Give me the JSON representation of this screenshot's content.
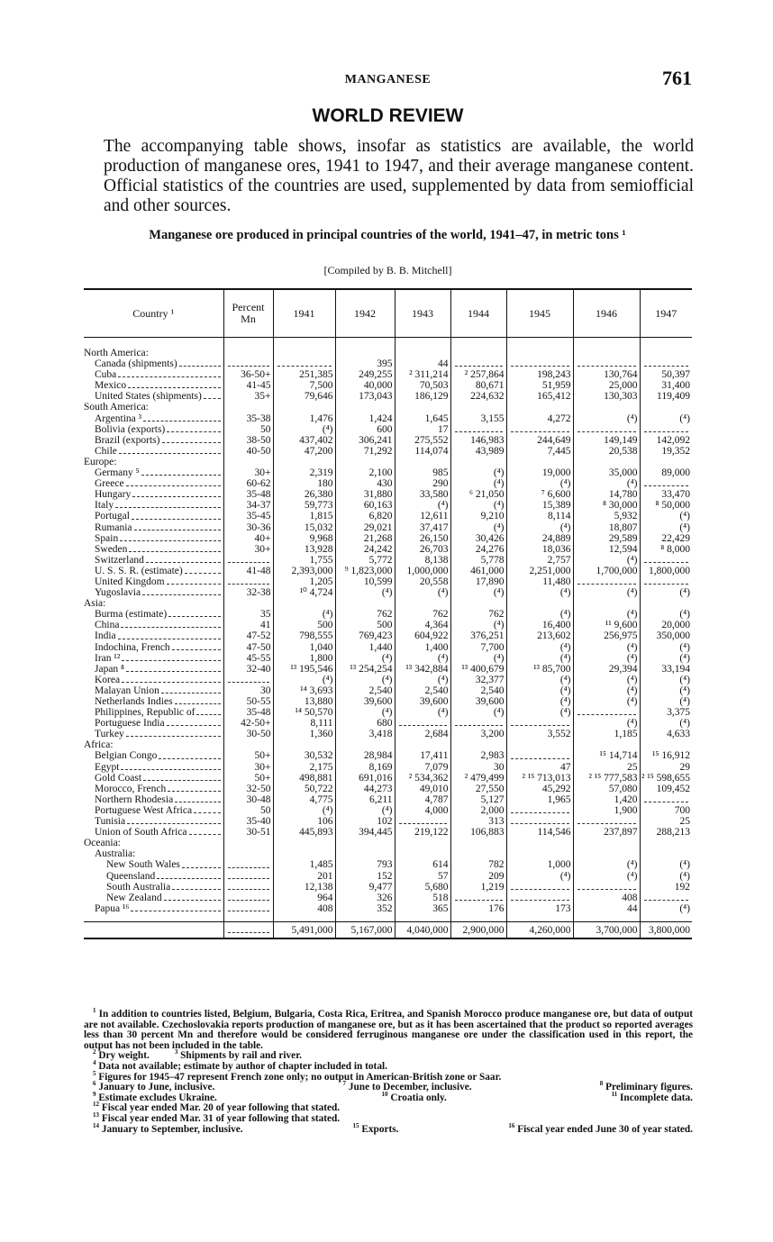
{
  "header": {
    "title": "MANGANESE",
    "page": "761"
  },
  "section_title": "WORLD REVIEW",
  "intro": "The accompanying table shows, insofar as statistics are available, the world production of manganese ores, 1941 to 1947, and their average manganese content. Official statistics of the countries are used, supplemented by data from semiofficial and other sources.",
  "table": {
    "caption": "Manganese ore produced in principal countries of the world, 1941–47, in metric tons ¹",
    "compiled": "[Compiled by B. B. Mitchell]",
    "columns": [
      "Country ¹",
      "Percent Mn",
      "1941",
      "1942",
      "1943",
      "1944",
      "1945",
      "1946",
      "1947"
    ],
    "groups": [
      {
        "name": "North America:",
        "rows": [
          [
            "Canada (shipments)",
            null,
            null,
            "395",
            "44",
            null,
            null,
            null,
            null
          ],
          [
            "Cuba",
            "36-50+",
            "251,385",
            "249,255",
            "² 311,214",
            "² 257,864",
            "198,243",
            "130,764",
            "50,397"
          ],
          [
            "Mexico",
            "41-45",
            "7,500",
            "40,000",
            "70,503",
            "80,671",
            "51,959",
            "25,000",
            "31,400"
          ],
          [
            "United States (shipments)",
            "35+",
            "79,646",
            "173,043",
            "186,129",
            "224,632",
            "165,412",
            "130,303",
            "119,409"
          ]
        ]
      },
      {
        "name": "South America:",
        "rows": [
          [
            "Argentina ³",
            "35-38",
            "1,476",
            "1,424",
            "1,645",
            "3,155",
            "4,272",
            "(⁴)",
            "(⁴)"
          ],
          [
            "Bolivia (exports)",
            "50",
            "(⁴)",
            "600",
            "17",
            null,
            null,
            null,
            null
          ],
          [
            "Brazil (exports)",
            "38-50",
            "437,402",
            "306,241",
            "275,552",
            "146,983",
            "244,649",
            "149,149",
            "142,092"
          ],
          [
            "Chile",
            "40-50",
            "47,200",
            "71,292",
            "114,074",
            "43,989",
            "7,445",
            "20,538",
            "19,352"
          ]
        ]
      },
      {
        "name": "Europe:",
        "rows": [
          [
            "Germany ⁵",
            "30+",
            "2,319",
            "2,100",
            "985",
            "(⁴)",
            "19,000",
            "35,000",
            "89,000"
          ],
          [
            "Greece",
            "60-62",
            "180",
            "430",
            "290",
            "(⁴)",
            "(⁴)",
            "(⁴)",
            null
          ],
          [
            "Hungary",
            "35-48",
            "26,380",
            "31,880",
            "33,580",
            "⁶ 21,050",
            "⁷ 6,600",
            "14,780",
            "33,470"
          ],
          [
            "Italy",
            "34-37",
            "59,773",
            "60,163",
            "(⁴)",
            "(⁴)",
            "15,389",
            "⁸ 30,000",
            "⁸ 50,000"
          ],
          [
            "Portugal",
            "35-45",
            "1,815",
            "6,820",
            "12,611",
            "9,210",
            "8,114",
            "5,932",
            "(⁴)"
          ],
          [
            "Rumania",
            "30-36",
            "15,032",
            "29,021",
            "37,417",
            "(⁴)",
            "(⁴)",
            "18,807",
            "(⁴)"
          ],
          [
            "Spain",
            "40+",
            "9,968",
            "21,268",
            "26,150",
            "30,426",
            "24,889",
            "29,589",
            "22,429"
          ],
          [
            "Sweden",
            "30+",
            "13,928",
            "24,242",
            "26,703",
            "24,276",
            "18,036",
            "12,594",
            "⁸ 8,000"
          ],
          [
            "Switzerland",
            null,
            "1,755",
            "5,772",
            "8,138",
            "5,778",
            "2,757",
            "(⁴)",
            null
          ],
          [
            "U. S. S. R. (estimate)",
            "41-48",
            "2,393,000",
            "⁹ 1,823,000",
            "1,000,000",
            "461,000",
            "2,251,000",
            "1,700,000",
            "1,800,000"
          ],
          [
            "United Kingdom",
            null,
            "1,205",
            "10,599",
            "20,558",
            "17,890",
            "11,480",
            null,
            null
          ],
          [
            "Yugoslavia",
            "32-38",
            "¹⁰ 4,724",
            "(⁴)",
            "(⁴)",
            "(⁴)",
            "(⁴)",
            "(⁴)",
            "(⁴)"
          ]
        ]
      },
      {
        "name": "Asia:",
        "rows": [
          [
            "Burma (estimate)",
            "35",
            "(⁴)",
            "762",
            "762",
            "762",
            "(⁴)",
            "(⁴)",
            "(⁴)"
          ],
          [
            "China",
            "41",
            "500",
            "500",
            "4,364",
            "(⁴)",
            "16,400",
            "¹¹ 9,600",
            "20,000"
          ],
          [
            "India",
            "47-52",
            "798,555",
            "769,423",
            "604,922",
            "376,251",
            "213,602",
            "256,975",
            "350,000"
          ],
          [
            "Indochina, French",
            "47-50",
            "1,040",
            "1,440",
            "1,400",
            "7,700",
            "(⁴)",
            "(⁴)",
            "(⁴)"
          ],
          [
            "Iran ¹²",
            "45-55",
            "1,800",
            "(⁴)",
            "(⁴)",
            "(⁴)",
            "(⁴)",
            "(⁴)",
            "(⁴)"
          ],
          [
            "Japan ⁸",
            "32-40",
            "¹³ 195,546",
            "¹³ 254,254",
            "¹³ 342,884",
            "¹³ 400,679",
            "¹³ 85,700",
            "29,394",
            "33,194"
          ],
          [
            "Korea",
            null,
            "(⁴)",
            "(⁴)",
            "(⁴)",
            "32,377",
            "(⁴)",
            "(⁴)",
            "(⁴)"
          ],
          [
            "Malayan Union",
            "30",
            "¹⁴ 3,693",
            "2,540",
            "2,540",
            "2,540",
            "(⁴)",
            "(⁴)",
            "(⁴)"
          ],
          [
            "Netherlands Indies",
            "50-55",
            "13,880",
            "39,600",
            "39,600",
            "39,600",
            "(⁴)",
            "(⁴)",
            "(⁴)"
          ],
          [
            "Philippines, Republic of",
            "35-48",
            "¹⁴ 50,570",
            "(⁴)",
            "(⁴)",
            "(⁴)",
            "(⁴)",
            null,
            "3,375"
          ],
          [
            "Portuguese India",
            "42-50+",
            "8,111",
            "680",
            null,
            null,
            null,
            "(⁴)",
            "(⁴)"
          ],
          [
            "Turkey",
            "30-50",
            "1,360",
            "3,418",
            "2,684",
            "3,200",
            "3,552",
            "1,185",
            "4,633"
          ]
        ]
      },
      {
        "name": "Africa:",
        "rows": [
          [
            "Belgian Congo",
            "50+",
            "30,532",
            "28,984",
            "17,411",
            "2,983",
            null,
            "¹⁵ 14,714",
            "¹⁵ 16,912"
          ],
          [
            "Egypt",
            "30+",
            "2,175",
            "8,169",
            "7,079",
            "30",
            "47",
            "25",
            "29"
          ],
          [
            "Gold Coast",
            "50+",
            "498,881",
            "691,016",
            "² 534,362",
            "² 479,499",
            "² ¹⁵ 713,013",
            "² ¹⁵ 777,583",
            "² ¹⁵ 598,655"
          ],
          [
            "Morocco, French",
            "32-50",
            "50,722",
            "44,273",
            "49,010",
            "27,550",
            "45,292",
            "57,080",
            "109,452"
          ],
          [
            "Northern Rhodesia",
            "30-48",
            "4,775",
            "6,211",
            "4,787",
            "5,127",
            "1,965",
            "1,420",
            null
          ],
          [
            "Portuguese West Africa",
            "50",
            "(⁴)",
            "(⁴)",
            "4,000",
            "2,000",
            null,
            "1,900",
            "700"
          ],
          [
            "Tunisia",
            "35-40",
            "106",
            "102",
            null,
            "313",
            null,
            null,
            "25"
          ],
          [
            "Union of South Africa",
            "30-51",
            "445,893",
            "394,445",
            "219,122",
            "106,883",
            "114,546",
            "237,897",
            "288,213"
          ]
        ]
      },
      {
        "name": "Oceania:",
        "rows": [
          {
            "name": "Australia:",
            "rows": [
              [
                "New South Wales",
                null,
                "1,485",
                "793",
                "614",
                "782",
                "1,000",
                "(⁴)",
                "(⁴)"
              ],
              [
                "Queensland",
                null,
                "201",
                "152",
                "57",
                "209",
                "(⁴)",
                "(⁴)",
                "(⁴)"
              ],
              [
                "South Australia",
                null,
                "12,138",
                "9,477",
                "5,680",
                "1,219",
                null,
                null,
                "192"
              ],
              [
                "New Zealand",
                null,
                "964",
                "326",
                "518",
                null,
                null,
                "408",
                null
              ]
            ]
          },
          [
            "Papua ¹⁶",
            null,
            "408",
            "352",
            "365",
            "176",
            "173",
            "44",
            "(⁴)"
          ]
        ]
      }
    ],
    "total": [
      null,
      "5,491,000",
      "5,167,000",
      "4,040,000",
      "2,900,000",
      "4,260,000",
      "3,700,000",
      "3,800,000"
    ]
  },
  "footnotes": [
    {
      "mark": "1",
      "text": "In addition to countries listed, Belgium, Bulgaria, Costa Rica, Eritrea, and Spanish Morocco produce manganese ore, but data of output are not available. Czechoslovakia reports production of manganese ore, but as it has been ascertained that the product so reported averages less than 30 percent Mn and therefore would be considered ferruginous manganese ore under the classification used in this report, the output has not been included in the table."
    },
    {
      "mark": "2",
      "text": "Dry weight."
    },
    {
      "mark": "3",
      "text": "Shipments by rail and river."
    },
    {
      "mark": "4",
      "text": "Data not available; estimate by author of chapter included in total."
    },
    {
      "mark": "5",
      "text": "Figures for 1945–47 represent French zone only; no output in American-British zone or Saar."
    },
    {
      "mark": "6",
      "text": "January to June, inclusive."
    },
    {
      "mark": "7",
      "text": "June to December, inclusive."
    },
    {
      "mark": "8",
      "text": "Preliminary figures."
    },
    {
      "mark": "9",
      "text": "Estimate excludes Ukraine."
    },
    {
      "mark": "10",
      "text": "Croatia only."
    },
    {
      "mark": "11",
      "text": "Incomplete data."
    },
    {
      "mark": "12",
      "text": "Fiscal year ended Mar. 20 of year following that stated."
    },
    {
      "mark": "13",
      "text": "Fiscal year ended Mar. 31 of year following that stated."
    },
    {
      "mark": "14",
      "text": "January to September, inclusive."
    },
    {
      "mark": "15",
      "text": "Exports."
    },
    {
      "mark": "16",
      "text": "Fiscal year ended June 30 of year stated."
    }
  ]
}
